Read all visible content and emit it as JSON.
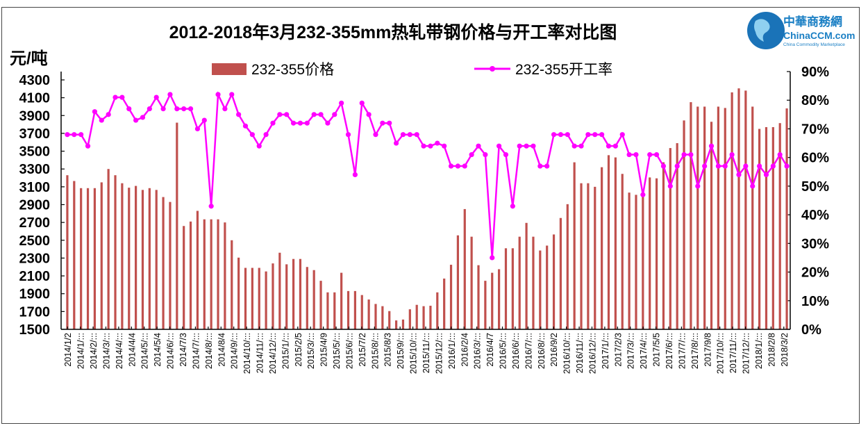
{
  "logo": {
    "cn": "中華商務網",
    "en": "ChinaCCM.com",
    "tagline": "China Commodity Marketplace"
  },
  "chart_data": {
    "type": "bar+line",
    "title": "2012-2018年3月232-355mm热轧带钢价格与开工率对比图",
    "ylabel": "元/吨",
    "ylim": [
      1500,
      4300
    ],
    "y_ticks": [
      "1500",
      "1700",
      "1900",
      "2100",
      "2300",
      "2500",
      "2700",
      "2900",
      "3100",
      "3300",
      "3500",
      "3700",
      "3900",
      "4100",
      "4300"
    ],
    "y2lim": [
      0,
      90
    ],
    "y2_ticks": [
      "0%",
      "10%",
      "20%",
      "30%",
      "40%",
      "50%",
      "60%",
      "70%",
      "80%",
      "90%"
    ],
    "legend_position": "top",
    "colors": {
      "price": "#C0504D",
      "rate": "#FF00FF"
    },
    "x_tick_labels": [
      "2014/1/2",
      "2014/1/:::",
      "2014/2/:::",
      "2014/3/:::",
      "2014/4/:::",
      "2014/4/4",
      "2014/5/:::",
      "2014/5/4",
      "2014/6/:::",
      "2014/7/3",
      "2014/7/:::",
      "2014/8/:::",
      "2014/8/4",
      "2014/9/:::",
      "2014/10/:::",
      "2014/11/:::",
      "2014/12/:::",
      "2015/1/:::",
      "2015/2/5",
      "2015/3/:::",
      "2015/4/9",
      "2015/5/:::",
      "2015/6/:::",
      "2015/7/2",
      "2015/8/:::",
      "2015/8/3",
      "2015/9/:::",
      "2015/10/:::",
      "2015/11/:::",
      "2015/12/:::",
      "2016/1/:::",
      "2016/2/4",
      "2016/3/:::",
      "2016/4/7",
      "2016/5/:::",
      "2016/6/:::",
      "2016/7/:::",
      "2016/8/:::",
      "2016/9/2",
      "2016/10/:::",
      "2016/11/:::",
      "2016/12/:::",
      "2017/1/:::",
      "2017/2/3",
      "2017/3/:::",
      "2017/4/:::",
      "2017/5/5",
      "2017/6/:::",
      "2017/7/:::",
      "2017/8/:::",
      "2017/9/8",
      "2017/10/:::",
      "2017/11/:::",
      "2017/12/:::",
      "2018/1/:::",
      "2018/2/8",
      "2018/3/2"
    ],
    "series": [
      {
        "name": "232-355价格",
        "type": "bar",
        "axis": "left",
        "values": [
          3230,
          3165,
          3085,
          3085,
          3085,
          3150,
          3300,
          3230,
          3140,
          3090,
          3110,
          3065,
          3085,
          3065,
          2985,
          2930,
          3820,
          2660,
          2710,
          2830,
          2735,
          2735,
          2735,
          2700,
          2500,
          2305,
          2190,
          2190,
          2190,
          2150,
          2240,
          2360,
          2230,
          2290,
          2290,
          2200,
          2165,
          2045,
          1915,
          1915,
          2135,
          1930,
          1930,
          1885,
          1835,
          1785,
          1760,
          1705,
          1600,
          1610,
          1725,
          1775,
          1760,
          1765,
          1915,
          2070,
          2225,
          2555,
          2850,
          2540,
          2220,
          2045,
          2135,
          2175,
          2410,
          2410,
          2540,
          2695,
          2540,
          2385,
          2440,
          2565,
          2750,
          2905,
          3375,
          3140,
          3140,
          3100,
          3320,
          3455,
          3430,
          3245,
          3035,
          3010,
          3060,
          3205,
          3195,
          3375,
          3535,
          3590,
          3845,
          4050,
          4000,
          4000,
          3830,
          4000,
          3985,
          4160,
          4205,
          4180,
          4000,
          3750,
          3770,
          3770,
          3815,
          3980
        ]
      },
      {
        "name": "232-355开工率",
        "type": "line",
        "axis": "right",
        "values": [
          68,
          68,
          68,
          64,
          76,
          73,
          75,
          81,
          81,
          77,
          73,
          74,
          77,
          81,
          77,
          82,
          77,
          77,
          77,
          70,
          73,
          43,
          82,
          77,
          82,
          75,
          71,
          68,
          64,
          68,
          72,
          75,
          75,
          72,
          72,
          72,
          75,
          75,
          72,
          75,
          79,
          68,
          54,
          79,
          75,
          68,
          72,
          72,
          65,
          68,
          68,
          68,
          64,
          64,
          65,
          64,
          57,
          57,
          57,
          61,
          64,
          61,
          25,
          64,
          61,
          43,
          64,
          64,
          64,
          57,
          57,
          68,
          68,
          68,
          64,
          64,
          68,
          68,
          68,
          64,
          64,
          68,
          61,
          61,
          47,
          61,
          61,
          57,
          50,
          57,
          61,
          61,
          50,
          57,
          64,
          57,
          57,
          61,
          54,
          57,
          50,
          57,
          54,
          57,
          61,
          57
        ]
      }
    ]
  }
}
